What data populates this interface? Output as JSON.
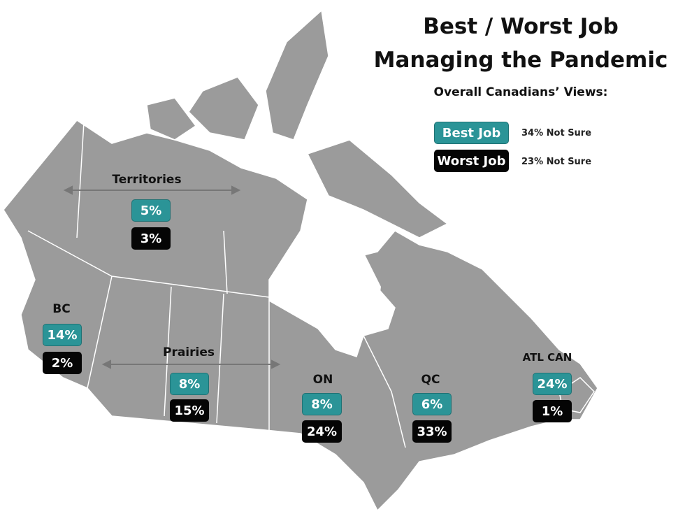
{
  "title_line1": "Best / Worst Job",
  "title_line2": "Managing the Pandemic",
  "subtitle": "Overall Canadians’ Views:",
  "legend": {
    "best_label": "Best Job",
    "best_note": "34% Not Sure",
    "worst_label": "Worst Job",
    "worst_note": "23% Not Sure"
  },
  "colors": {
    "best": "#2b9497",
    "worst": "#050505",
    "land": "#9b9b9b"
  },
  "regions": {
    "territories": {
      "name": "Territories",
      "best": "5%",
      "worst": "3%"
    },
    "bc": {
      "name": "BC",
      "best": "14%",
      "worst": "2%"
    },
    "prairies": {
      "name": "Prairies",
      "best": "8%",
      "worst": "15%"
    },
    "on": {
      "name": "ON",
      "best": "8%",
      "worst": "24%"
    },
    "qc": {
      "name": "QC",
      "best": "6%",
      "worst": "33%"
    },
    "atl": {
      "name": "ATL CAN",
      "best": "24%",
      "worst": "1%"
    }
  }
}
